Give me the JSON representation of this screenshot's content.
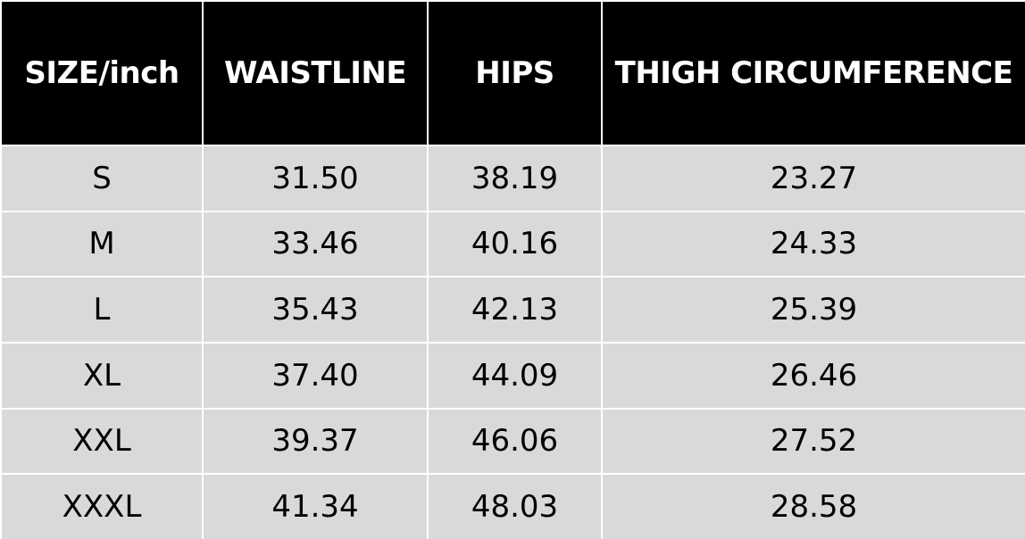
{
  "table": {
    "header": [
      "SIZE/inch",
      "WAISTLINE",
      "HIPS",
      "THIGH CIRCUMFERENCE"
    ],
    "rows": [
      [
        "S",
        "31.50",
        "38.19",
        "23.27"
      ],
      [
        "M",
        "33.46",
        "40.16",
        "24.33"
      ],
      [
        "L",
        "35.43",
        "42.13",
        "25.39"
      ],
      [
        "XL",
        "37.40",
        "44.09",
        "26.46"
      ],
      [
        "XXL",
        "39.37",
        "46.06",
        "27.52"
      ],
      [
        "XXXL",
        "41.34",
        "48.03",
        "28.58"
      ]
    ]
  }
}
